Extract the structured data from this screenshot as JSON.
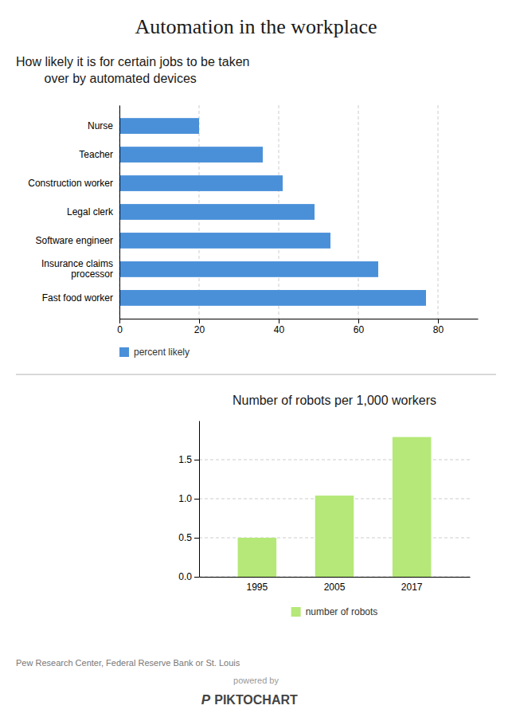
{
  "title": "Automation in the workplace",
  "annotations": [
    "Pew Research Center, Federal Reserve Bank or St. Louis",
    "powered by",
    "P",
    "PIKTOCHART"
  ],
  "chart_data": [
    {
      "type": "bar",
      "orientation": "horizontal",
      "title": "How likely it is for certain jobs to be taken\n        over by automated devices",
      "categories": [
        "Fast food worker",
        "Insurance claims\nprocessor",
        "Software engineer",
        "Legal clerk",
        "Construction worker",
        "Teacher",
        "Nurse"
      ],
      "series": [
        {
          "name": "percent likely",
          "color": "#4a90d9",
          "values": [
            77,
            65,
            53,
            49,
            41,
            36,
            20
          ]
        }
      ],
      "xlim": [
        0,
        90
      ],
      "xticks": [
        0,
        20,
        40,
        60,
        80
      ],
      "grid": true
    },
    {
      "type": "bar",
      "title": "Number of robots per 1,000 workers",
      "categories": [
        "1995",
        "2005",
        "2017"
      ],
      "series": [
        {
          "name": "number of robots",
          "color": "#b5e878",
          "values": [
            0.5,
            1.04,
            1.79
          ]
        }
      ],
      "ylim": [
        0,
        2.0
      ],
      "yticks": [
        {
          "value": 0,
          "label": "0.0"
        },
        0.5,
        {
          "value": 1.0,
          "label": "1.0"
        },
        1.5
      ],
      "grid": true
    }
  ]
}
